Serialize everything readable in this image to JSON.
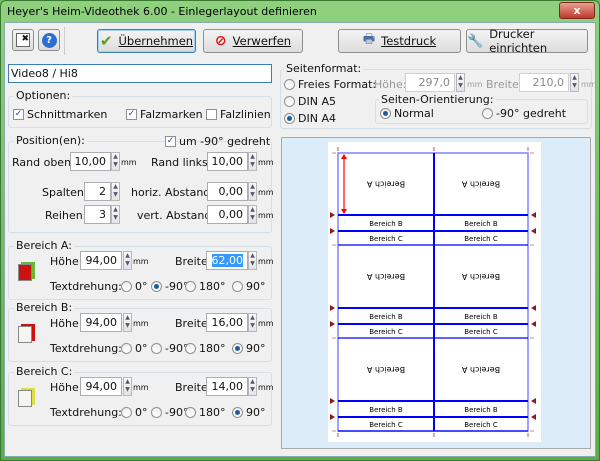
{
  "window": {
    "title": "Heyer's Heim-Videothek 6.00 - Einlegerlayout definieren",
    "close": "x"
  },
  "toolbar": {
    "uebernehmen": "Übernehmen",
    "verwerfen": "Verwerfen",
    "testdruck": "Testdruck",
    "drucker": "Drucker einrichten"
  },
  "name_value": "Video8 / Hi8",
  "optionen": {
    "label": "Optionen:",
    "schnittmarken": "Schnittmarken",
    "falzmarken": "Falzmarken",
    "falzlinien": "Falzlinien",
    "schnittmarken_checked": true,
    "falzmarken_checked": true,
    "falzlinien_checked": false
  },
  "seitenformat": {
    "label": "Seitenformat:",
    "frei": "Freies Format:",
    "hoehe_label": "Höhe:",
    "hoehe": "297,0",
    "breite_label": "Breite:",
    "breite": "210,0",
    "a5": "DIN A5",
    "a4": "DIN A4",
    "selected": "DIN A4",
    "orient_label": "Seiten-Orientierung:",
    "normal": "Normal",
    "gedreht": "-90° gedreht",
    "orient_selected": "Normal"
  },
  "position": {
    "label": "Position(en):",
    "gedreht": "um -90° gedreht",
    "gedreht_checked": true,
    "rand_oben_label": "Rand oben:",
    "rand_oben": "10,00",
    "rand_links_label": "Rand links:",
    "rand_links": "10,00",
    "spalten_label": "Spalten:",
    "spalten": "2",
    "reihen_label": "Reihen:",
    "reihen": "3",
    "horiz_label": "horiz. Abstand:",
    "horiz": "0,00",
    "vert_label": "vert. Abstand:",
    "vert": "0,00"
  },
  "unit": "mm",
  "labels": {
    "hoehe": "Höhe:",
    "breite": "Breite:",
    "textdrehung": "Textdrehung:",
    "r0": "0°",
    "rm90": "-90°",
    "r180": "180°",
    "r90": "90°"
  },
  "bereiche": [
    {
      "label": "Bereich A:",
      "hoehe": "94,00",
      "breite": "62,00",
      "rotation": "-90°",
      "color": "#cc1111"
    },
    {
      "label": "Bereich B:",
      "hoehe": "94,00",
      "breite": "16,00",
      "rotation": "90°",
      "color": "#cc1111"
    },
    {
      "label": "Bereich C:",
      "hoehe": "94,00",
      "breite": "14,00",
      "rotation": "90°",
      "color": "#dddd44"
    }
  ],
  "preview": {
    "a": "Bereich A",
    "b": "Bereich B",
    "c": "Bereich C",
    "grid_color": "#0000ff",
    "mark_color": "#8b1a1a",
    "arrow_color": "#ff0000"
  }
}
